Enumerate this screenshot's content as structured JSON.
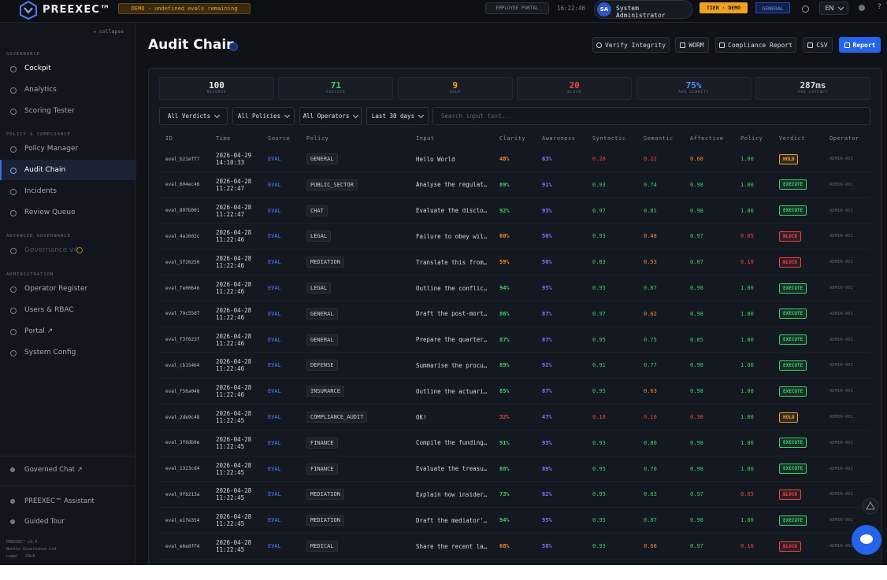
{
  "header": {
    "brand": "PREEXEC™",
    "demo_badge": "DEMO · undefined evals remaining",
    "portal_button": "EMPLOYEE PORTAL",
    "clock": "16:22:46",
    "user_initials": "SA",
    "user_name": "System Administrator",
    "tier": "TIER · DEMO",
    "scope": "GENERAL",
    "language": "EN",
    "help": "?"
  },
  "sidebar": {
    "collapse": "◂ collapse",
    "sections": [
      {
        "title": "GOVERNANCE",
        "items": [
          "Cockpit",
          "Analytics",
          "Scoring Tester"
        ]
      },
      {
        "title": "POLICY & COMPLIANCE",
        "items": [
          "Policy Manager",
          "Audit Chain",
          "Incidents",
          "Review Queue"
        ]
      },
      {
        "title": "ADVANCED GOVERNANCE",
        "items": [
          "Governance v4"
        ]
      },
      {
        "title": "ADMINISTRATION",
        "items": [
          "Operator Register",
          "Users & RBAC",
          "Portal ↗",
          "System Config"
        ]
      }
    ],
    "bottom_items": [
      "Governed Chat ↗",
      "PREEXEC™ Assistant",
      "Guided Tour"
    ],
    "footer": [
      "PREEXEC™ v3.4",
      "Noetic Governance Ltd.",
      "Legal · SOLA"
    ]
  },
  "page": {
    "title": "Audit Chain",
    "actions": [
      "Verify Integrity",
      "WORM",
      "Compliance Report",
      "CSV",
      "Report"
    ]
  },
  "stats": [
    {
      "value": "100",
      "label": "RECORDS",
      "color": "#e8e8e8"
    },
    {
      "value": "71",
      "label": "EXECUTE",
      "color": "#3fcf6a"
    },
    {
      "value": "9",
      "label": "HOLD",
      "color": "#f0a030"
    },
    {
      "value": "20",
      "label": "BLOCK",
      "color": "#ef4444"
    },
    {
      "value": "75%",
      "label": "AVG CLARITY",
      "color": "#5a8cff"
    },
    {
      "value": "287ms",
      "label": "AVG LATENCY",
      "color": "#d8d8d8"
    }
  ],
  "filters": [
    "All Verdicts",
    "All Policies",
    "All Operators",
    "Last 30 days"
  ],
  "search_placeholder": "Search input text...",
  "table": {
    "columns": [
      "ID",
      "Time",
      "Source",
      "Policy",
      "Input",
      "Clarity",
      "Awareness",
      "Syntactic",
      "Semantic",
      "Affective",
      "Policy",
      "Verdict",
      "Operator"
    ],
    "rows": [
      [
        "eval_b21eff7",
        "2026-04-29 14:10:33",
        "EVAL",
        "GENERAL",
        "Hello World",
        "48%",
        "63%",
        "0.28",
        "0.22",
        "0.68",
        "1.00",
        "HOLD",
        "ADMIN-001"
      ],
      [
        "eval_604ec46",
        "2026-04-28 11:22:47",
        "EVAL",
        "PUBLIC_SECTOR",
        "Analyse the regulat…",
        "89%",
        "91%",
        "0.93",
        "0.74",
        "0.98",
        "1.00",
        "EXECUTE",
        "ADMIN-001"
      ],
      [
        "eval_897b001",
        "2026-04-28 11:22:47",
        "EVAL",
        "CHAT",
        "Evaluate the disclo…",
        "92%",
        "93%",
        "0.97",
        "0.81",
        "0.98",
        "1.00",
        "EXECUTE",
        "ADMIN-001"
      ],
      [
        "eval_4a1602c",
        "2026-04-28 11:22:46",
        "EVAL",
        "LEGAL",
        "Failure to obey wil…",
        "60%",
        "50%",
        "0.93",
        "0.48",
        "0.97",
        "0.05",
        "BLOCK",
        "ADMIN-001"
      ],
      [
        "eval_5f20250",
        "2026-04-28 11:22:46",
        "EVAL",
        "MEDIATION",
        "Translate this from…",
        "59%",
        "50%",
        "0.83",
        "0.53",
        "0.87",
        "0.10",
        "BLOCK",
        "ADMIN-001"
      ],
      [
        "eval_fe00646",
        "2026-04-28 11:22:46",
        "EVAL",
        "LEGAL",
        "Outline the conflic…",
        "94%",
        "95%",
        "0.95",
        "0.87",
        "0.98",
        "1.00",
        "EXECUTE",
        "ADMIN-001"
      ],
      [
        "eval_79c55d7",
        "2026-04-28 11:22:46",
        "EVAL",
        "GENERAL",
        "Draft the post-mort…",
        "86%",
        "87%",
        "0.97",
        "0.62",
        "0.98",
        "1.00",
        "EXECUTE",
        "ADMIN-001"
      ],
      [
        "eval_f3f623f",
        "2026-04-28 11:22:46",
        "EVAL",
        "GENERAL",
        "Prepare the quarter…",
        "87%",
        "87%",
        "0.95",
        "0.75",
        "0.85",
        "1.00",
        "EXECUTE",
        "ADMIN-001"
      ],
      [
        "eval_cb15464",
        "2026-04-28 11:22:46",
        "EVAL",
        "DEFENSE",
        "Summarise the procu…",
        "89%",
        "92%",
        "0.91",
        "0.77",
        "0.98",
        "1.00",
        "EXECUTE",
        "ADMIN-001"
      ],
      [
        "eval_f56a048",
        "2026-04-28 11:22:46",
        "EVAL",
        "INSURANCE",
        "Outline the actuari…",
        "85%",
        "87%",
        "0.95",
        "0.63",
        "0.98",
        "1.00",
        "EXECUTE",
        "ADMIN-001"
      ],
      [
        "eval_2de9c48",
        "2026-04-28 11:22:45",
        "EVAL",
        "COMPLIANCE_AUDIT",
        "OK!",
        "32%",
        "47%",
        "0.10",
        "0.10",
        "0.30",
        "1.00",
        "HOLD",
        "ADMIN-001"
      ],
      [
        "eval_3f6db9e",
        "2026-04-28 11:22:45",
        "EVAL",
        "FINANCE",
        "Compile the funding…",
        "91%",
        "93%",
        "0.93",
        "0.80",
        "0.98",
        "1.00",
        "EXECUTE",
        "ADMIN-001"
      ],
      [
        "eval_1323cd4",
        "2026-04-28 11:22:45",
        "EVAL",
        "FINANCE",
        "Evaluate the treasu…",
        "88%",
        "89%",
        "0.95",
        "0.70",
        "0.98",
        "1.00",
        "EXECUTE",
        "ADMIN-001"
      ],
      [
        "eval_9fb213a",
        "2026-04-28 11:22:45",
        "EVAL",
        "MEDIATION",
        "Explain how insider…",
        "73%",
        "62%",
        "0.95",
        "0.83",
        "0.97",
        "0.05",
        "BLOCK",
        "ADMIN-001"
      ],
      [
        "eval_e1fe354",
        "2026-04-28 11:22:45",
        "EVAL",
        "MEDIATION",
        "Draft the mediator'…",
        "94%",
        "95%",
        "0.95",
        "0.87",
        "0.98",
        "1.00",
        "EXECUTE",
        "ADMIN-001"
      ],
      [
        "eval_e6e8ff4",
        "2026-04-28 11:22:45",
        "EVAL",
        "MEDICAL",
        "Share the recent la…",
        "68%",
        "58%",
        "0.93",
        "0.68",
        "0.97",
        "0.10",
        "BLOCK",
        "ADMIN-001"
      ]
    ]
  }
}
